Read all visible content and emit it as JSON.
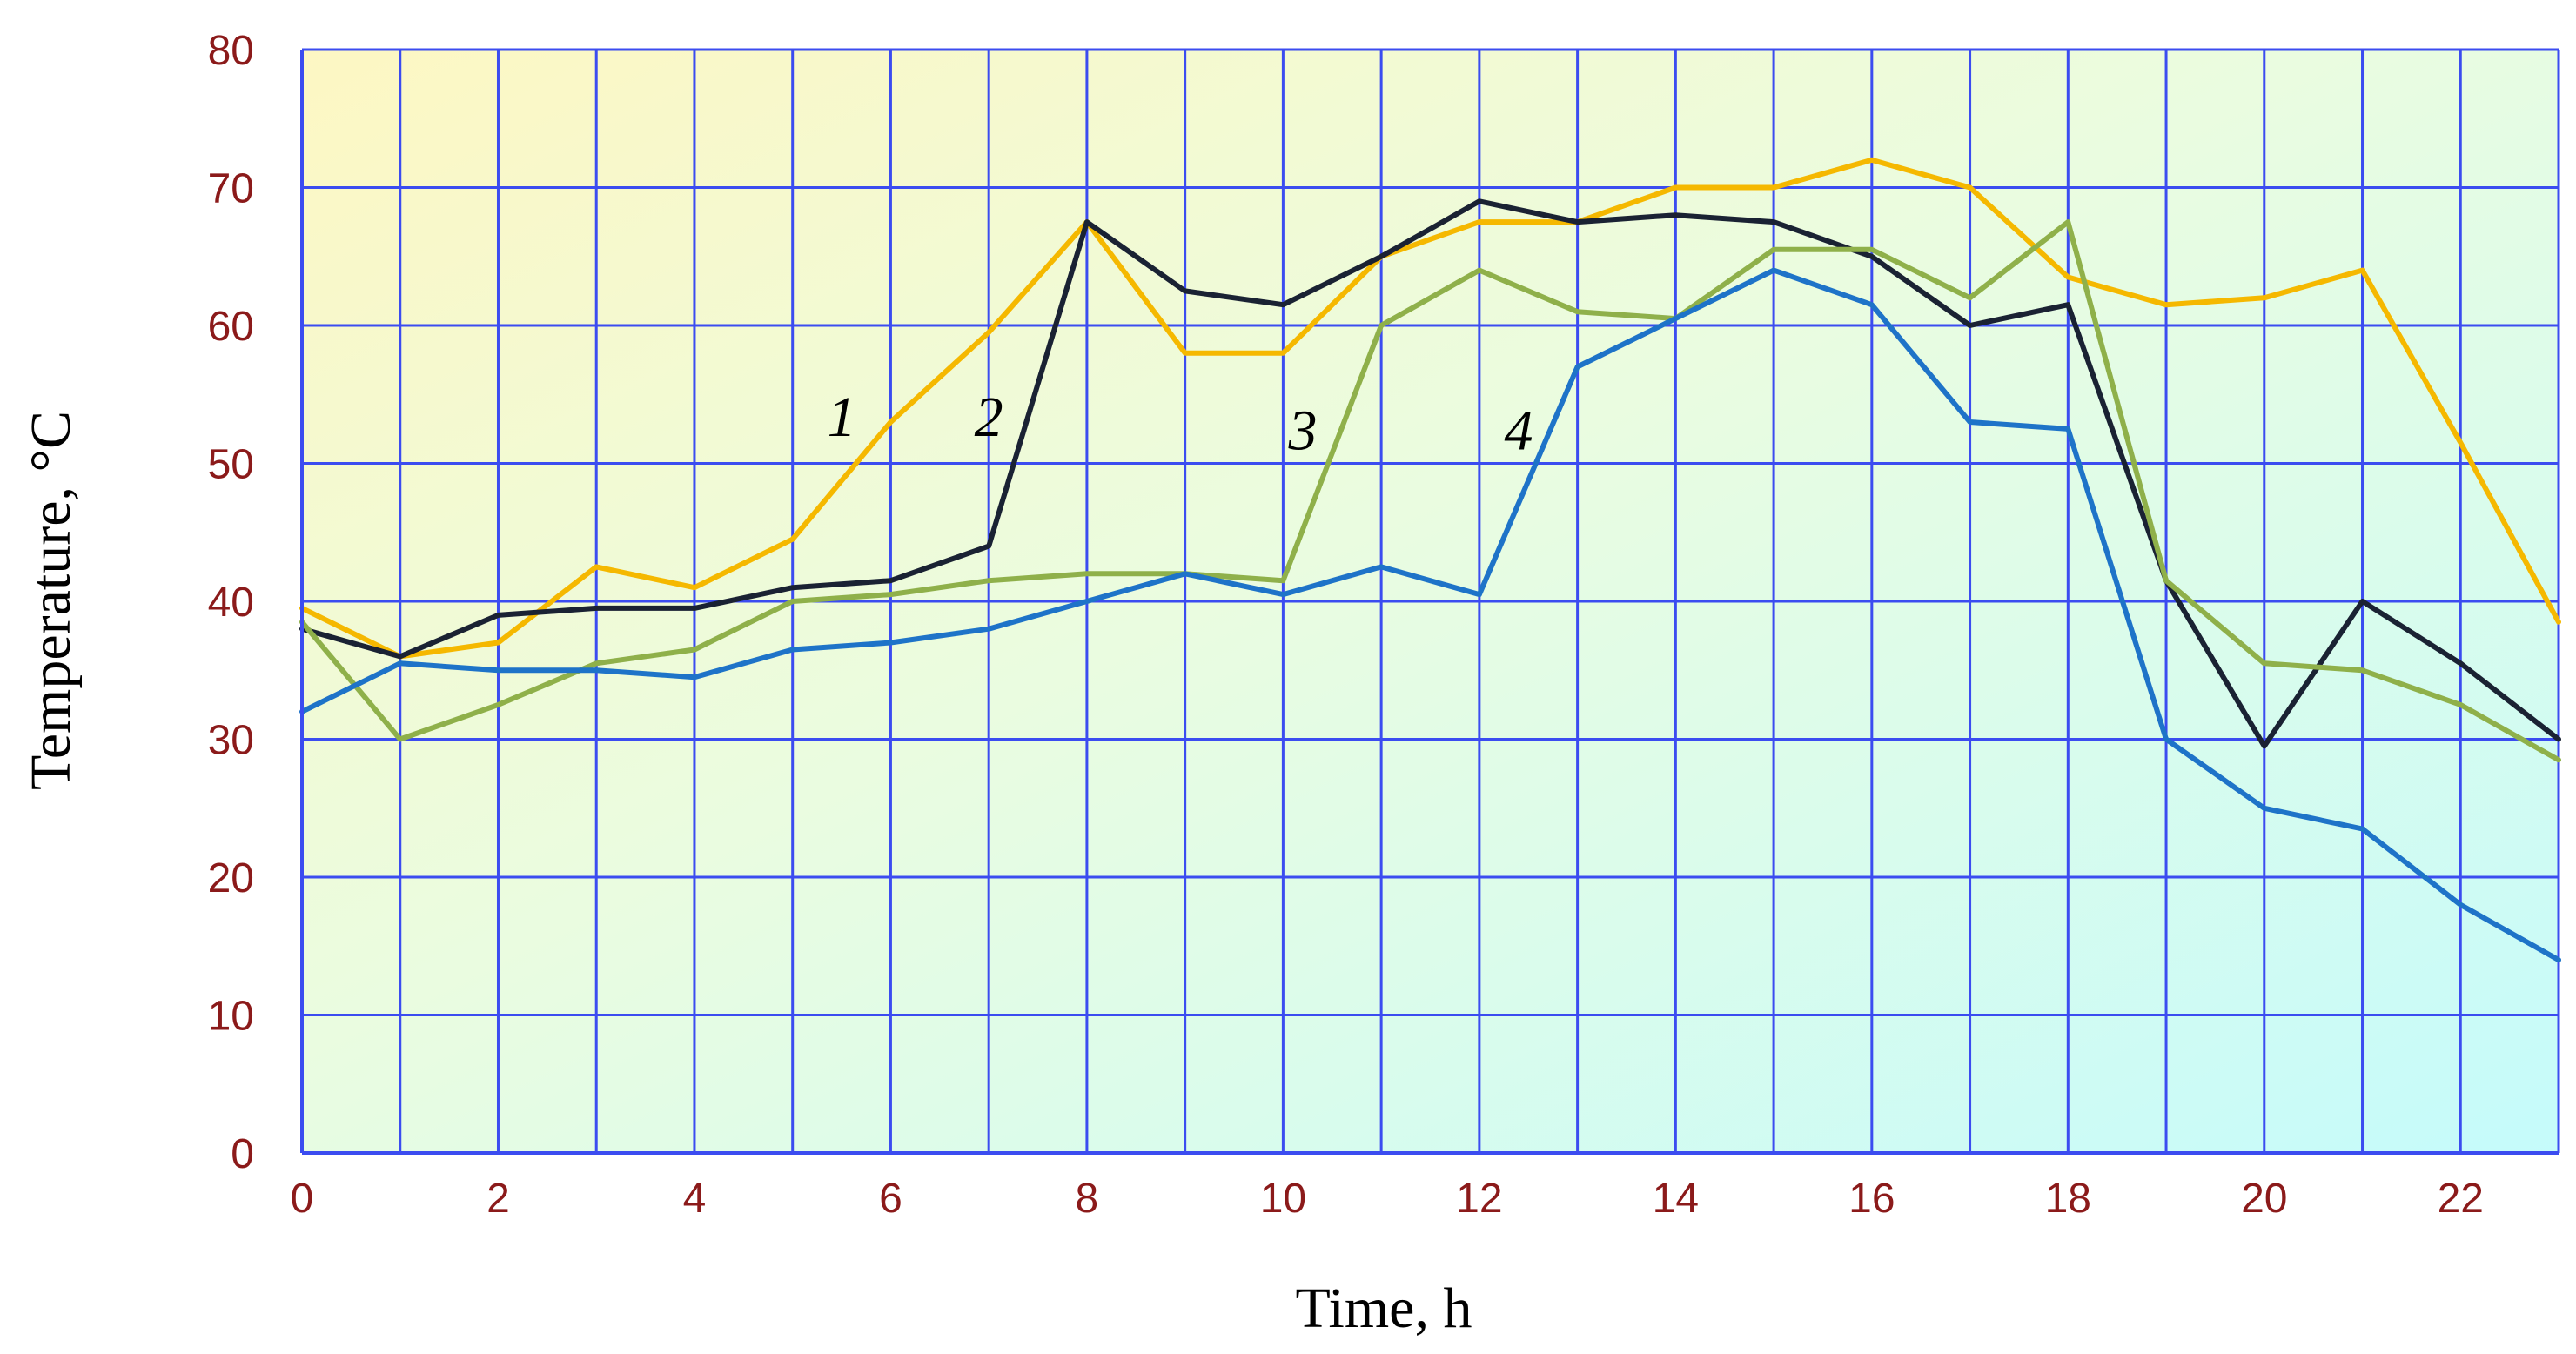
{
  "chart_data": {
    "type": "line",
    "xlabel": "Time, h",
    "ylabel": "Temperature, °C",
    "xlim": [
      0,
      23
    ],
    "ylim": [
      0,
      80
    ],
    "x_ticks": [
      "0",
      "2",
      "4",
      "6",
      "8",
      "10",
      "12",
      "14",
      "16",
      "18",
      "20",
      "22"
    ],
    "y_ticks": [
      "0",
      "10",
      "20",
      "30",
      "40",
      "50",
      "60",
      "70",
      "80"
    ],
    "grid": true,
    "x": [
      0,
      1,
      2,
      3,
      4,
      5,
      6,
      7,
      8,
      9,
      10,
      11,
      12,
      13,
      14,
      15,
      16,
      17,
      18,
      19,
      20,
      21,
      22,
      23
    ],
    "series": [
      {
        "name": "1",
        "color": "#f5b800",
        "values": [
          39.5,
          36,
          37,
          42.5,
          41,
          44.5,
          53,
          59.5,
          67.5,
          58,
          58,
          65,
          67.5,
          67.5,
          70,
          70,
          72,
          70,
          63.5,
          61.5,
          62,
          64,
          51.5,
          38.5
        ]
      },
      {
        "name": "2",
        "color": "#1a2233",
        "values": [
          38,
          36,
          39,
          39.5,
          39.5,
          41,
          41.5,
          44,
          67.5,
          62.5,
          61.5,
          65,
          69,
          67.5,
          68,
          67.5,
          65,
          60,
          61.5,
          41.5,
          29.5,
          40,
          35.5,
          30
        ]
      },
      {
        "name": "3",
        "color": "#8fb04a",
        "values": [
          38.5,
          30,
          32.5,
          35.5,
          36.5,
          40,
          40.5,
          41.5,
          42,
          42,
          41.5,
          60,
          64,
          61,
          60.5,
          65.5,
          65.5,
          62,
          67.5,
          41.5,
          35.5,
          35,
          32.5,
          28.5
        ]
      },
      {
        "name": "4",
        "color": "#1e73c8",
        "values": [
          32,
          35.5,
          35,
          35,
          34.5,
          36.5,
          37,
          38,
          40,
          42,
          40.5,
          42.5,
          40.5,
          57,
          60.5,
          64,
          61.5,
          53,
          52.5,
          30,
          25,
          23.5,
          18,
          14
        ]
      }
    ],
    "annotations": [
      {
        "text": "1",
        "x": 5.5,
        "y": 52
      },
      {
        "text": "2",
        "x": 7.0,
        "y": 52
      },
      {
        "text": "3",
        "x": 10.2,
        "y": 51
      },
      {
        "text": "4",
        "x": 12.4,
        "y": 51
      }
    ]
  }
}
